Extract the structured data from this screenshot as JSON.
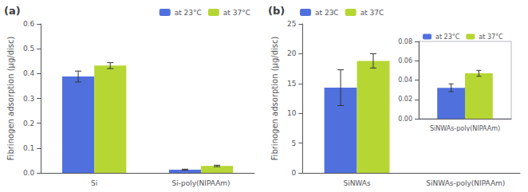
{
  "chart_data": [
    {
      "type": "bar",
      "title": "(a)",
      "categories": [
        "Si",
        "Si-poly(NIPAAm)"
      ],
      "series": [
        {
          "name": "at 23°C",
          "values": [
            0.388,
            0.013
          ],
          "errors": [
            0.022,
            0.002
          ]
        },
        {
          "name": "at 37°C",
          "values": [
            0.432,
            0.028
          ],
          "errors": [
            0.012,
            0.003
          ]
        }
      ],
      "ylabel": "Fibrinogen adsorption (μg/disc)",
      "ylim": [
        0,
        0.6
      ],
      "yticks": [
        {
          "value": 0,
          "label": "0.0"
        },
        0.1,
        0.2,
        0.3,
        0.4,
        0.5,
        0.6
      ],
      "grid": false,
      "legend": "upper right"
    },
    {
      "type": "bar",
      "title": "(b)",
      "categories": [
        "SiNWAs",
        "SiNWAs-poly(NIPAAm)"
      ],
      "series": [
        {
          "name": "at 23C",
          "values": [
            14.3,
            null
          ],
          "errors": [
            3.0,
            null
          ]
        },
        {
          "name": "at 37C",
          "values": [
            18.8,
            null
          ],
          "errors": [
            1.2,
            null
          ]
        }
      ],
      "ylabel": "Fibrinogen adsorption (μg/disc)",
      "ylim": [
        0,
        25
      ],
      "yticks": [
        0,
        5,
        10,
        15,
        20,
        25
      ],
      "grid": false,
      "legend": "upper left"
    },
    {
      "type": "bar",
      "categories": [
        "SiNWAs-poly(NIPAAm)"
      ],
      "series": [
        {
          "name": "at 23°C",
          "values": [
            0.032
          ],
          "errors": [
            0.004
          ]
        },
        {
          "name": "at 37°C",
          "values": [
            0.047
          ],
          "errors": [
            0.003
          ]
        }
      ],
      "ylim": [
        0,
        0.08
      ],
      "yticks": [
        {
          "value": 0,
          "label": "0.00"
        },
        {
          "value": 0.02,
          "label": "0.02"
        },
        {
          "value": 0.04,
          "label": "0.04"
        },
        {
          "value": 0.06,
          "label": "0.06"
        },
        {
          "value": 0.08,
          "label": "0.08"
        }
      ],
      "grid": false,
      "legend": "upper left"
    }
  ]
}
